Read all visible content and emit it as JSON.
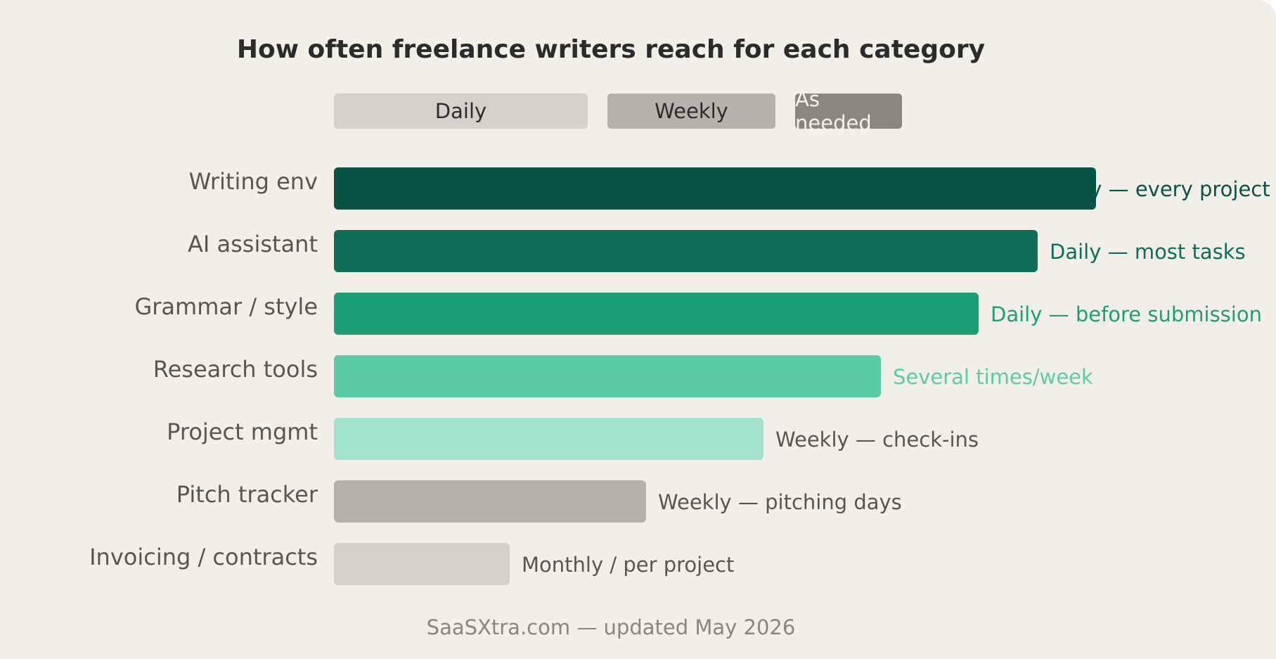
{
  "title": "How often freelance writers reach for each category",
  "legend": [
    {
      "label": "Daily",
      "color": "#d4d1cb",
      "text_color": "#2e2c29"
    },
    {
      "label": "Weekly",
      "color": "#b5b2ab",
      "text_color": "#2e2c29"
    },
    {
      "label": "As needed",
      "color": "#8a877f",
      "text_color": "#f4f2ee"
    }
  ],
  "chart_data": {
    "type": "bar",
    "orientation": "horizontal",
    "categories": [
      "Writing env",
      "AI assistant",
      "Grammar / style",
      "Research tools",
      "Project mgmt",
      "Pitch tracker",
      "Invoicing / contracts"
    ],
    "values": [
      13,
      12,
      11,
      9.33,
      7.33,
      5.33,
      3
    ],
    "xlim": [
      0,
      13
    ],
    "bar_labels": [
      "Daily — every project",
      "Daily — most tasks",
      "Daily — before submission",
      "Several times/week",
      "Weekly — check-ins",
      "Weekly — pitching days",
      "Monthly / per project"
    ],
    "colors": [
      "#085246",
      "#0f6e59",
      "#1d9e76",
      "#5ecaa5",
      "#a2e2cc",
      "#b5b2ab",
      "#d4d1cb"
    ],
    "label_colors": [
      "#085246",
      "#0f6e59",
      "#1d9e76",
      "#5ecaa5",
      "#5a554f",
      "#5a554f",
      "#5a554f"
    ],
    "grid": false,
    "legend_position": "top"
  },
  "footer": "SaaSXtra.com — updated May 2026"
}
